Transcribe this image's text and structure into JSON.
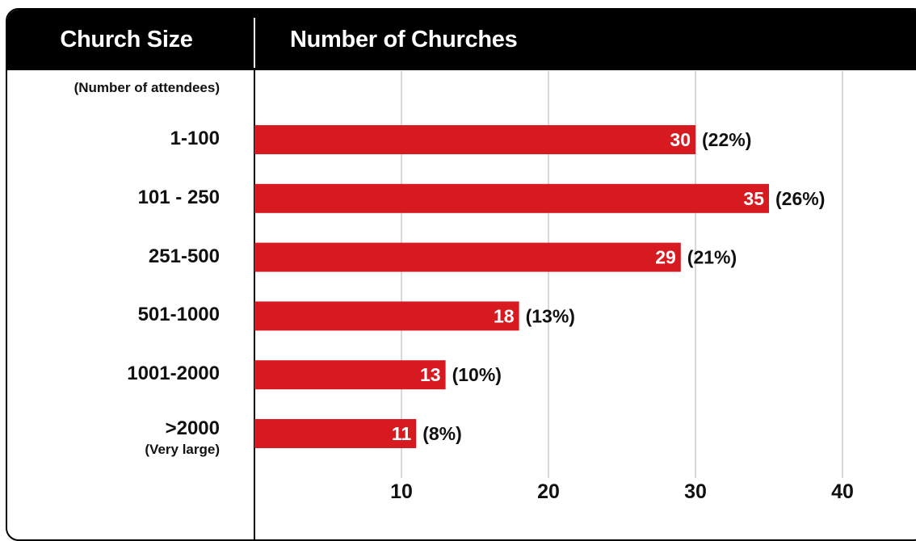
{
  "header": {
    "left_title": "Church Size",
    "right_title": "Number of Churches"
  },
  "row_axis_note": "(Number of attendees)",
  "colors": {
    "bar": "#d71920",
    "header_bg": "#000000",
    "grid": "#d9d9d9",
    "text": "#111111"
  },
  "chart_data": {
    "type": "bar",
    "orientation": "horizontal",
    "title": "",
    "xlabel": "Number of Churches",
    "ylabel": "Church Size",
    "categories": [
      "1-100",
      "101 - 250",
      "251-500",
      "501-1000",
      "1001-2000",
      ">2000"
    ],
    "category_sublabels": [
      "",
      "",
      "",
      "",
      "",
      "(Very large)"
    ],
    "values": [
      30,
      35,
      29,
      18,
      13,
      11
    ],
    "percent_labels": [
      "(22%)",
      "(26%)",
      "(21%)",
      "(13%)",
      "(10%)",
      "(8%)"
    ],
    "xticks": [
      10,
      20,
      30,
      40
    ],
    "xlim": [
      0,
      40
    ],
    "grid": true,
    "legend": "none"
  }
}
